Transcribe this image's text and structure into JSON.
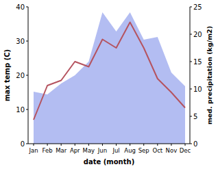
{
  "chart_data": {
    "type": "line",
    "categories": [
      "Jan",
      "Feb",
      "Mar",
      "Apr",
      "May",
      "Jun",
      "Jul",
      "Aug",
      "Sep",
      "Oct",
      "Nov",
      "Dec"
    ],
    "x_label": "date (month)",
    "y_label": "max temp (C)",
    "y2_label": "med. precipitation (kg/m2)",
    "series": [
      {
        "name": "med. precipitation",
        "type": "area",
        "axis": "y2",
        "color": "#b3bdf2",
        "values": [
          9.5,
          9,
          11,
          12.5,
          15,
          24,
          20.5,
          24,
          19,
          19.5,
          13,
          10.5
        ]
      },
      {
        "name": "max temp",
        "type": "line",
        "color": "#b5535f",
        "values": [
          7,
          17,
          18.5,
          24,
          22.5,
          30.5,
          28,
          35.5,
          28,
          19,
          15,
          10.5
        ]
      }
    ],
    "ylim": [
      0,
      40
    ],
    "yticks": [
      0,
      10,
      20,
      30,
      40
    ],
    "y2lim": [
      0,
      25
    ],
    "y2ticks": [
      0,
      5,
      10,
      15,
      20,
      25
    ]
  }
}
